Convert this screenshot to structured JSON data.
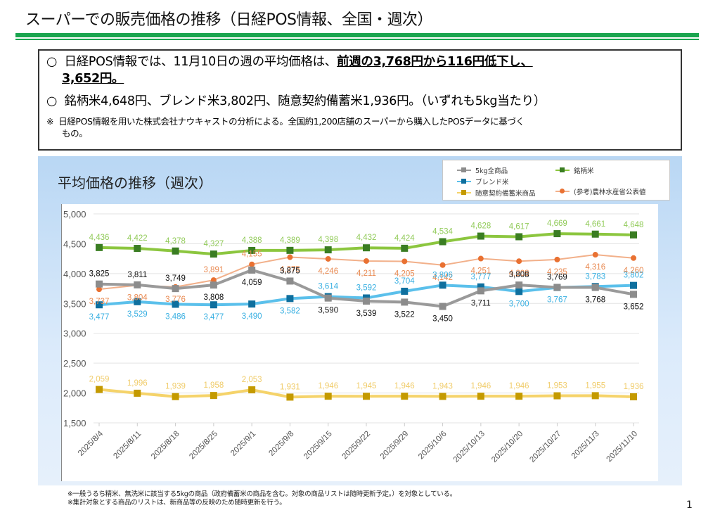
{
  "page": {
    "title": "スーパーでの販売価格の推移（日経POS情報、全国・週次）",
    "page_number": "1"
  },
  "summary": {
    "bullet": "○",
    "line1_prefix": "日経POS情報では、11月10日の週の平均価格は、",
    "line1_emphasis": "前週の3,768円から116円低下し、",
    "line1_emphasis2": "3,652円。",
    "line2": "銘柄米4,648円、ブレンド米3,802円、随意契約備蓄米1,936円。（いずれも5kg当たり）",
    "note_mark": "※",
    "note": "日経POS情報を用いた株式会社ナウキャストの分析による。全国約1,200店舗のスーパーから購入したPOSデータに基づく",
    "note_cont": "もの。"
  },
  "footnotes": [
    "※一般うるち精米、無洗米に該当する5kgの商品（政府備蓄米の商品を含む。対象の商品リストは随時更新予定。）を対象としている。",
    "※集計対象とする商品のリストは、新商品等の反映のため随時更新を行う。"
  ],
  "chart_data": {
    "type": "line",
    "title": "平均価格の推移（週次）",
    "xlabel": "",
    "ylabel": "",
    "ylim": [
      1500,
      5000
    ],
    "yticks": [
      1500,
      2000,
      2500,
      3000,
      3500,
      4000,
      4500,
      5000
    ],
    "ytick_labels": [
      "1,500",
      "2,000",
      "2,500",
      "3,000",
      "3,500",
      "4,000",
      "4,500",
      "5,000"
    ],
    "grid": true,
    "legend_position": "top-right",
    "categories": [
      "2025/8/4",
      "2025/8/11",
      "2025/8/18",
      "2025/8/25",
      "2025/9/1",
      "2025/9/8",
      "2025/9/15",
      "2025/9/22",
      "2025/9/29",
      "2025/10/6",
      "2025/10/13",
      "2025/10/20",
      "2025/10/27",
      "2025/11/3",
      "2025/11/10"
    ],
    "series": [
      {
        "name": "5kg全商品",
        "color": "#9a9a9a",
        "marker_color": "#8c8c8c",
        "label_color": "#111111",
        "marker": "square",
        "values": [
          3825,
          3811,
          3749,
          3808,
          4059,
          3875,
          3590,
          3539,
          3522,
          3450,
          3711,
          3808,
          3769,
          3768,
          3652
        ]
      },
      {
        "name": "銘柄米",
        "color": "#8cc63f",
        "marker_color": "#3a7d22",
        "label_color": "#92cb5a",
        "marker": "square",
        "values": [
          4436,
          4422,
          4378,
          4327,
          4388,
          4389,
          4398,
          4432,
          4424,
          4534,
          4628,
          4617,
          4669,
          4661,
          4648
        ]
      },
      {
        "name": "ブレンド米",
        "color": "#5bc0eb",
        "marker_color": "#0e6f9e",
        "label_color": "#3ab0e2",
        "marker": "square",
        "values": [
          3477,
          3529,
          3486,
          3477,
          3490,
          3582,
          3614,
          3592,
          3704,
          3806,
          3777,
          3700,
          3767,
          3783,
          3802
        ]
      },
      {
        "name": "随意契約備蓄米商品",
        "color": "#f5d36a",
        "marker_color": "#c49a00",
        "label_color": "#f0cc6a",
        "marker": "square",
        "values": [
          2059,
          1996,
          1939,
          1958,
          2053,
          1931,
          1946,
          1945,
          1946,
          1943,
          1946,
          1946,
          1953,
          1955,
          1936
        ]
      },
      {
        "name": "(参考)農林水産省公表値",
        "color": "#f2b08a",
        "marker_color": "#e97132",
        "label_color": "#e98a52",
        "marker": "circle",
        "values": [
          3737,
          3804,
          3776,
          3891,
          4155,
          4275,
          4246,
          4211,
          4205,
          4142,
          4251,
          4208,
          4235,
          4316,
          4260
        ]
      }
    ]
  }
}
